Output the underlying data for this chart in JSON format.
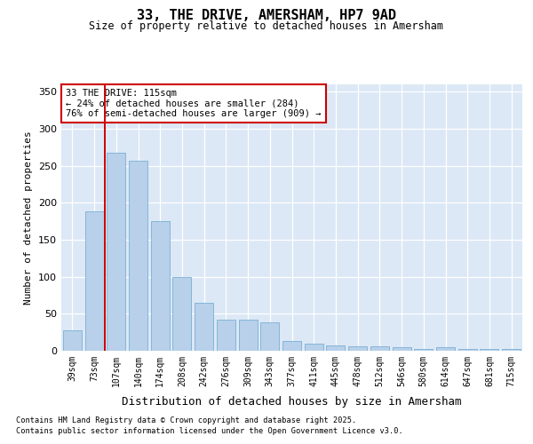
{
  "title": "33, THE DRIVE, AMERSHAM, HP7 9AD",
  "subtitle": "Size of property relative to detached houses in Amersham",
  "xlabel": "Distribution of detached houses by size in Amersham",
  "ylabel": "Number of detached properties",
  "categories": [
    "39sqm",
    "73sqm",
    "107sqm",
    "140sqm",
    "174sqm",
    "208sqm",
    "242sqm",
    "276sqm",
    "309sqm",
    "343sqm",
    "377sqm",
    "411sqm",
    "445sqm",
    "478sqm",
    "512sqm",
    "546sqm",
    "580sqm",
    "614sqm",
    "647sqm",
    "681sqm",
    "715sqm"
  ],
  "values": [
    28,
    188,
    268,
    257,
    175,
    100,
    65,
    42,
    42,
    38,
    13,
    10,
    7,
    6,
    6,
    5,
    2,
    5,
    2,
    2,
    2
  ],
  "bar_color": "#b8d0ea",
  "bar_edge_color": "#7aafd4",
  "vline_x": 1.5,
  "vline_color": "#cc0000",
  "annotation_text": "33 THE DRIVE: 115sqm\n← 24% of detached houses are smaller (284)\n76% of semi-detached houses are larger (909) →",
  "annotation_box_color": "#ffffff",
  "annotation_box_edge": "#cc0000",
  "ylim": [
    0,
    360
  ],
  "yticks": [
    0,
    50,
    100,
    150,
    200,
    250,
    300,
    350
  ],
  "fig_bg": "#ffffff",
  "plot_bg": "#dce8f5",
  "grid_color": "#ffffff",
  "footer_line1": "Contains HM Land Registry data © Crown copyright and database right 2025.",
  "footer_line2": "Contains public sector information licensed under the Open Government Licence v3.0."
}
